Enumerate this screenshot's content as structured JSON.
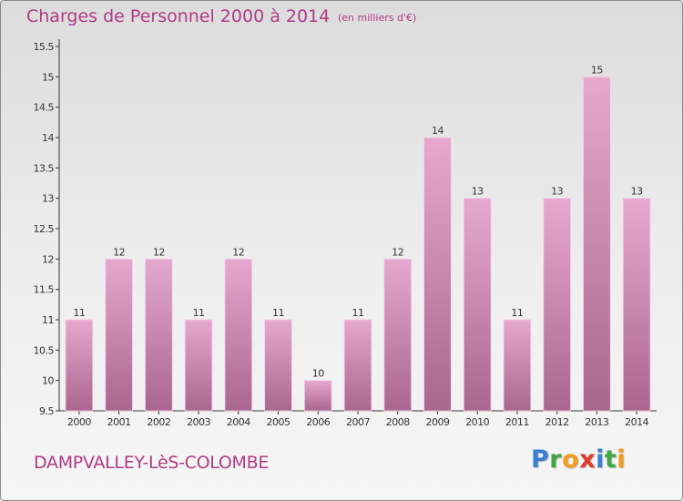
{
  "header": {
    "title": "Charges de Personnel 2000 à 2014",
    "unit": "(en milliers d'€)"
  },
  "footer": {
    "commune": "DAMPVALLEY-LèS-COLOMBE",
    "logo_letters": [
      "P",
      "r",
      "o",
      "x",
      "i",
      "t",
      "i"
    ],
    "logo_colors": [
      "#3a7fd0",
      "#3fa845",
      "#f29b1c",
      "#e03a2f",
      "#3a7fd0",
      "#3fa845",
      "#f29b1c"
    ]
  },
  "colors": {
    "bar_top": "#e6a8cf",
    "bar_bottom": "#a9668f",
    "text": "#b03a86",
    "axis": "#333333"
  },
  "chart_data": {
    "type": "bar",
    "title": "Charges de Personnel 2000 à 2014",
    "subtitle": "(en milliers d'€)",
    "categories": [
      "2000",
      "2001",
      "2002",
      "2003",
      "2004",
      "2005",
      "2006",
      "2007",
      "2008",
      "2009",
      "2010",
      "2011",
      "2012",
      "2013",
      "2014"
    ],
    "values": [
      11,
      12,
      12,
      11,
      12,
      11,
      10,
      11,
      12,
      14,
      13,
      11,
      13,
      15,
      13
    ],
    "data_labels": [
      "11",
      "12",
      "12",
      "11",
      "12",
      "11",
      "10",
      "11",
      "12",
      "14",
      "13",
      "11",
      "13",
      "15",
      "13"
    ],
    "ylim": [
      9.5,
      15.5
    ],
    "yticks": [
      9.5,
      10,
      10.5,
      11,
      11.5,
      12,
      12.5,
      13,
      13.5,
      14,
      14.5,
      15,
      15.5
    ],
    "ytick_labels": [
      "9.5",
      "10",
      "10.5",
      "11",
      "11.5",
      "12",
      "12.5",
      "13",
      "13.5",
      "14",
      "14.5",
      "15",
      "15.5"
    ],
    "grid": false,
    "legend": "none"
  }
}
